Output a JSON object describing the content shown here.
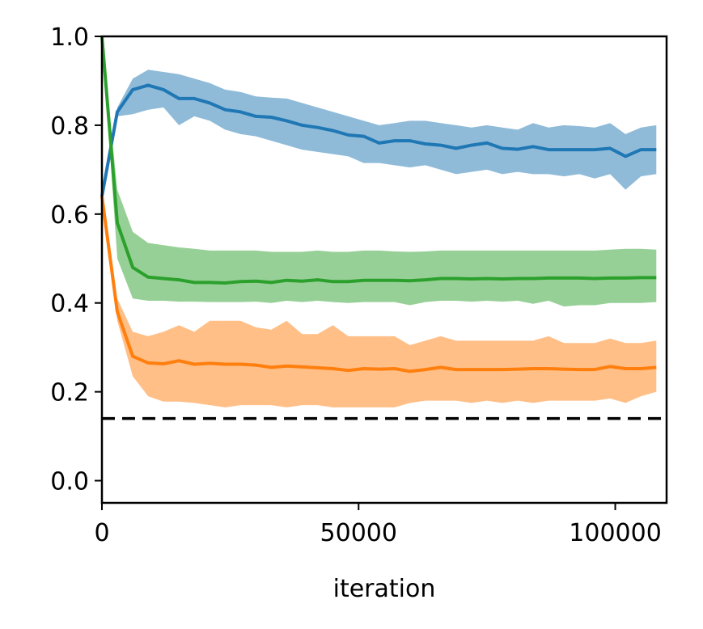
{
  "chart_data": {
    "type": "line",
    "title": "",
    "xlabel": "iteration",
    "ylabel": "",
    "xlim": [
      0,
      110000
    ],
    "ylim": [
      -0.05,
      1.0
    ],
    "xticks": [
      0,
      50000,
      100000
    ],
    "xtick_labels": [
      "0",
      "50000",
      "100000"
    ],
    "yticks": [
      0.0,
      0.2,
      0.4,
      0.6,
      0.8,
      1.0
    ],
    "ytick_labels": [
      "0.0",
      "0.2",
      "0.4",
      "0.6",
      "0.8",
      "1.0"
    ],
    "grid": false,
    "legend": "none",
    "x": [
      0,
      3000,
      6000,
      9000,
      12000,
      15000,
      18000,
      21000,
      24000,
      27000,
      30000,
      33000,
      36000,
      39000,
      42000,
      45000,
      48000,
      51000,
      54000,
      57000,
      60000,
      63000,
      66000,
      69000,
      72000,
      75000,
      78000,
      81000,
      84000,
      87000,
      90000,
      93000,
      96000,
      99000,
      102000,
      105000,
      108000
    ],
    "series": [
      {
        "color": "#1f77b4",
        "band_color": "#8fbbd9",
        "mean": [
          0.64,
          0.83,
          0.88,
          0.89,
          0.88,
          0.86,
          0.86,
          0.85,
          0.835,
          0.83,
          0.82,
          0.818,
          0.81,
          0.8,
          0.795,
          0.788,
          0.778,
          0.775,
          0.76,
          0.765,
          0.765,
          0.758,
          0.755,
          0.748,
          0.755,
          0.76,
          0.748,
          0.746,
          0.752,
          0.745,
          0.745,
          0.745,
          0.745,
          0.748,
          0.73,
          0.745,
          0.745
        ],
        "upper": [
          0.65,
          0.84,
          0.905,
          0.925,
          0.92,
          0.915,
          0.905,
          0.895,
          0.88,
          0.875,
          0.865,
          0.862,
          0.86,
          0.85,
          0.84,
          0.83,
          0.82,
          0.81,
          0.8,
          0.805,
          0.81,
          0.81,
          0.805,
          0.8,
          0.795,
          0.8,
          0.795,
          0.79,
          0.805,
          0.795,
          0.8,
          0.798,
          0.795,
          0.805,
          0.78,
          0.795,
          0.8
        ],
        "lower": [
          0.63,
          0.82,
          0.825,
          0.835,
          0.84,
          0.8,
          0.82,
          0.81,
          0.79,
          0.78,
          0.775,
          0.765,
          0.755,
          0.745,
          0.74,
          0.735,
          0.73,
          0.715,
          0.715,
          0.71,
          0.705,
          0.71,
          0.7,
          0.69,
          0.695,
          0.7,
          0.69,
          0.695,
          0.69,
          0.69,
          0.685,
          0.69,
          0.68,
          0.69,
          0.655,
          0.685,
          0.69
        ]
      },
      {
        "color": "#2ca02c",
        "band_color": "#96d096",
        "mean": [
          1.0,
          0.58,
          0.48,
          0.458,
          0.455,
          0.452,
          0.446,
          0.446,
          0.445,
          0.448,
          0.449,
          0.446,
          0.451,
          0.449,
          0.452,
          0.448,
          0.448,
          0.451,
          0.451,
          0.451,
          0.45,
          0.452,
          0.455,
          0.455,
          0.454,
          0.455,
          0.454,
          0.455,
          0.455,
          0.456,
          0.456,
          0.456,
          0.455,
          0.456,
          0.456,
          0.457,
          0.457
        ],
        "upper": [
          1.0,
          0.655,
          0.56,
          0.535,
          0.53,
          0.525,
          0.522,
          0.518,
          0.518,
          0.518,
          0.518,
          0.515,
          0.515,
          0.515,
          0.518,
          0.515,
          0.515,
          0.518,
          0.518,
          0.516,
          0.515,
          0.516,
          0.518,
          0.518,
          0.518,
          0.518,
          0.518,
          0.518,
          0.518,
          0.518,
          0.518,
          0.518,
          0.518,
          0.52,
          0.522,
          0.522,
          0.52
        ],
        "lower": [
          1.0,
          0.5,
          0.41,
          0.405,
          0.405,
          0.403,
          0.403,
          0.402,
          0.402,
          0.402,
          0.403,
          0.4,
          0.405,
          0.402,
          0.405,
          0.402,
          0.4,
          0.402,
          0.402,
          0.402,
          0.395,
          0.402,
          0.405,
          0.405,
          0.403,
          0.405,
          0.403,
          0.405,
          0.398,
          0.405,
          0.392,
          0.395,
          0.395,
          0.4,
          0.4,
          0.4,
          0.402
        ]
      },
      {
        "color": "#ff7f0e",
        "band_color": "#ffbf87",
        "mean": [
          0.64,
          0.38,
          0.28,
          0.265,
          0.263,
          0.27,
          0.262,
          0.264,
          0.262,
          0.262,
          0.26,
          0.255,
          0.258,
          0.256,
          0.254,
          0.252,
          0.248,
          0.252,
          0.251,
          0.252,
          0.246,
          0.25,
          0.255,
          0.25,
          0.25,
          0.25,
          0.25,
          0.251,
          0.252,
          0.252,
          0.251,
          0.25,
          0.25,
          0.257,
          0.252,
          0.252,
          0.255
        ],
        "upper": [
          0.66,
          0.41,
          0.335,
          0.325,
          0.335,
          0.35,
          0.335,
          0.36,
          0.36,
          0.36,
          0.345,
          0.34,
          0.36,
          0.33,
          0.33,
          0.35,
          0.325,
          0.325,
          0.325,
          0.325,
          0.305,
          0.315,
          0.325,
          0.315,
          0.315,
          0.315,
          0.315,
          0.315,
          0.315,
          0.325,
          0.31,
          0.31,
          0.31,
          0.32,
          0.31,
          0.31,
          0.315
        ],
        "lower": [
          0.62,
          0.36,
          0.235,
          0.19,
          0.178,
          0.178,
          0.175,
          0.17,
          0.165,
          0.17,
          0.17,
          0.17,
          0.165,
          0.17,
          0.17,
          0.165,
          0.165,
          0.165,
          0.165,
          0.165,
          0.175,
          0.18,
          0.18,
          0.18,
          0.175,
          0.18,
          0.175,
          0.18,
          0.175,
          0.18,
          0.18,
          0.18,
          0.18,
          0.185,
          0.175,
          0.19,
          0.2
        ]
      }
    ],
    "reference_line": {
      "y": 0.14,
      "color": "#000000",
      "style": "dashed"
    }
  }
}
